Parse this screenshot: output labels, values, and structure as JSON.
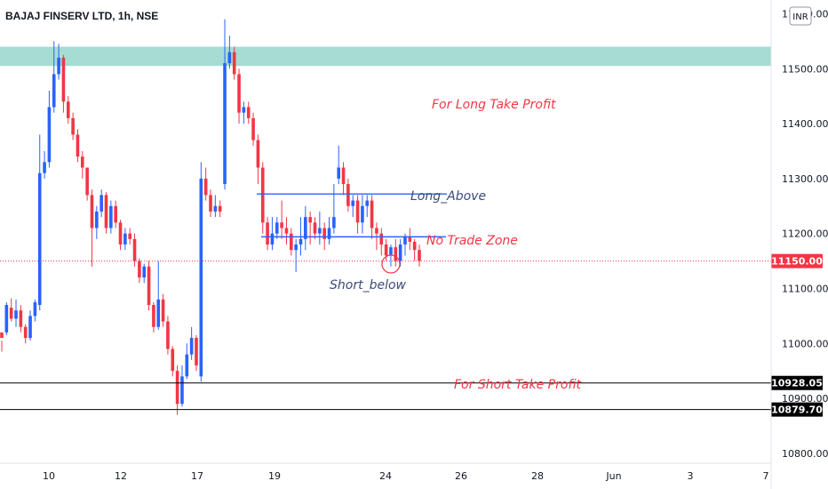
{
  "header": {
    "title": "BAJAJ FINSERV LTD, 1h, NSE"
  },
  "currency_button": {
    "label": "INR"
  },
  "colors": {
    "up": "#2962ff",
    "down": "#f23645",
    "zone": "#a6dcd4",
    "level_line": "#000000",
    "range_line": "#2962ff",
    "price_line": "#f23645"
  },
  "annotations": {
    "long_tp": "For Long Take Profit",
    "long_above": "Long_Above",
    "no_trade": "No Trade Zone",
    "short_below": "Short_below",
    "short_tp": "For Short Take Profit"
  },
  "chart_data": {
    "type": "candlestick",
    "title": "BAJAJ FINSERV LTD, 1h, NSE",
    "y_axis": {
      "ticks": [
        10800,
        10900,
        11000,
        11100,
        11200,
        11300,
        11400,
        11500,
        11600
      ],
      "tick_labels": [
        "10800.00",
        "10900.00",
        "11000.00",
        "11100.00",
        "11200.00",
        "11300.00",
        "11400.00",
        "11500.00",
        "11600.00"
      ],
      "ylim": [
        10782,
        11625
      ],
      "position": "right"
    },
    "x_axis": {
      "tick_labels": [
        "10",
        "12",
        "17",
        "19",
        "24",
        "26",
        "28",
        "Jun",
        "3",
        "7"
      ]
    },
    "current_price": {
      "value": 11150,
      "label": "11150.00"
    },
    "horizontal_levels": [
      {
        "value": 10928.05,
        "label": "10928.05"
      },
      {
        "value": 10879.7,
        "label": "10879.70"
      }
    ],
    "zone": {
      "from": 11505,
      "to": 11540
    },
    "range_lines": [
      {
        "name": "Long_Above",
        "value": 11272
      },
      {
        "name": "Short_below",
        "value": 11194
      }
    ],
    "candles": [
      [
        11020,
        11010,
        11005,
        10985
      ],
      [
        11020,
        11070,
        11075,
        11015
      ],
      [
        11065,
        11045,
        11082,
        11040
      ],
      [
        11045,
        11060,
        11080,
        11030
      ],
      [
        11060,
        11030,
        11070,
        11020
      ],
      [
        11030,
        11010,
        11035,
        11000
      ],
      [
        11010,
        11050,
        11060,
        11005
      ],
      [
        11050,
        11075,
        11080,
        11040
      ],
      [
        11070,
        11310,
        11380,
        11060
      ],
      [
        11310,
        11330,
        11350,
        11300
      ],
      [
        11330,
        11430,
        11460,
        11320
      ],
      [
        11430,
        11490,
        11550,
        11420
      ],
      [
        11490,
        11520,
        11545,
        11480
      ],
      [
        11520,
        11440,
        11525,
        11420
      ],
      [
        11440,
        11410,
        11450,
        11400
      ],
      [
        11410,
        11380,
        11420,
        11370
      ],
      [
        11380,
        11340,
        11390,
        11330
      ],
      [
        11340,
        11320,
        11350,
        11300
      ],
      [
        11320,
        11270,
        11320,
        11260
      ],
      [
        11270,
        11210,
        11280,
        11140
      ],
      [
        11210,
        11240,
        11250,
        11190
      ],
      [
        11240,
        11270,
        11280,
        11230
      ],
      [
        11270,
        11210,
        11275,
        11200
      ],
      [
        11210,
        11250,
        11260,
        11200
      ],
      [
        11250,
        11220,
        11260,
        11210
      ],
      [
        11220,
        11180,
        11225,
        11170
      ],
      [
        11180,
        11200,
        11210,
        11170
      ],
      [
        11200,
        11190,
        11210,
        11180
      ],
      [
        11190,
        11150,
        11200,
        11140
      ],
      [
        11150,
        11120,
        11155,
        11110
      ],
      [
        11120,
        11140,
        11145,
        11110
      ],
      [
        11140,
        11070,
        11150,
        11060
      ],
      [
        11070,
        11030,
        11075,
        11020
      ],
      [
        11030,
        11080,
        11150,
        11025
      ],
      [
        11080,
        11040,
        11090,
        11030
      ],
      [
        11040,
        10990,
        11050,
        10980
      ],
      [
        10990,
        10950,
        10995,
        10940
      ],
      [
        10950,
        10890,
        10960,
        10870
      ],
      [
        10890,
        10940,
        10960,
        10885
      ],
      [
        10940,
        10980,
        11000,
        10935
      ],
      [
        10980,
        11010,
        11030,
        10970
      ],
      [
        11010,
        10960,
        11015,
        10950
      ],
      [
        10940,
        11300,
        11330,
        10930
      ],
      [
        11300,
        11270,
        11320,
        11260
      ],
      [
        11270,
        11240,
        11280,
        11230
      ],
      [
        11240,
        11250,
        11270,
        11230
      ],
      [
        11250,
        11240,
        11260,
        11230
      ],
      [
        11290,
        11510,
        11590,
        11280
      ],
      [
        11510,
        11530,
        11560,
        11500
      ],
      [
        11530,
        11490,
        11540,
        11480
      ],
      [
        11490,
        11420,
        11500,
        11400
      ],
      [
        11420,
        11430,
        11440,
        11400
      ],
      [
        11430,
        11410,
        11440,
        11400
      ],
      [
        11410,
        11370,
        11420,
        11360
      ],
      [
        11370,
        11320,
        11380,
        11290
      ],
      [
        11320,
        11220,
        11330,
        11200
      ],
      [
        11220,
        11180,
        11230,
        11170
      ],
      [
        11180,
        11200,
        11230,
        11170
      ],
      [
        11200,
        11220,
        11230,
        11190
      ],
      [
        11220,
        11210,
        11260,
        11190
      ],
      [
        11210,
        11200,
        11230,
        11180
      ],
      [
        11200,
        11170,
        11210,
        11160
      ],
      [
        11170,
        11180,
        11190,
        11130
      ],
      [
        11180,
        11190,
        11230,
        11160
      ],
      [
        11190,
        11230,
        11250,
        11170
      ],
      [
        11230,
        11220,
        11240,
        11180
      ],
      [
        11220,
        11200,
        11230,
        11190
      ],
      [
        11200,
        11210,
        11240,
        11180
      ],
      [
        11210,
        11190,
        11220,
        11170
      ],
      [
        11190,
        11210,
        11230,
        11180
      ],
      [
        11210,
        11230,
        11290,
        11200
      ],
      [
        11300,
        11320,
        11360,
        11290
      ],
      [
        11320,
        11290,
        11330,
        11270
      ],
      [
        11290,
        11250,
        11300,
        11240
      ],
      [
        11250,
        11260,
        11270,
        11230
      ],
      [
        11260,
        11220,
        11270,
        11200
      ],
      [
        11220,
        11250,
        11270,
        11200
      ],
      [
        11250,
        11260,
        11270,
        11230
      ],
      [
        11260,
        11210,
        11270,
        11190
      ],
      [
        11210,
        11200,
        11220,
        11170
      ],
      [
        11200,
        11180,
        11210,
        11160
      ],
      [
        11180,
        11160,
        11190,
        11150
      ],
      [
        11160,
        11175,
        11180,
        11140
      ],
      [
        11175,
        11150,
        11190,
        11140
      ],
      [
        11150,
        11180,
        11190,
        11140
      ],
      [
        11180,
        11195,
        11200,
        11160
      ],
      [
        11195,
        11185,
        11210,
        11170
      ],
      [
        11185,
        11170,
        11190,
        11150
      ],
      [
        11170,
        11150,
        11180,
        11140
      ]
    ]
  }
}
